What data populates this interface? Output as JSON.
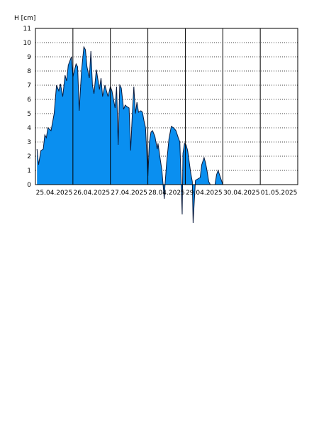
{
  "chart_data": {
    "type": "area",
    "title": "",
    "ylabel": "H [cm]",
    "xlabel": "",
    "ylim": [
      0,
      11
    ],
    "y_ticks": [
      "0",
      "1",
      "2",
      "3",
      "4",
      "5",
      "6",
      "7",
      "8",
      "9",
      "10",
      "11"
    ],
    "x_axis": {
      "type": "date",
      "start": "2025-04-25T00:00",
      "end": "2025-05-02T00:00",
      "tick_labels": [
        "25.04.2025",
        "26.04.2025",
        "27.04.2025",
        "28.04.2025",
        "29.04.2025",
        "30.04.2025",
        "01.05.2025"
      ],
      "gridlines_at": [
        "26.04.2025",
        "27.04.2025",
        "28.04.2025",
        "29.04.2025",
        "30.04.2025",
        "01.05.2025"
      ]
    },
    "grid": {
      "horizontal": "dotted",
      "vertical": "solid"
    },
    "colors": {
      "fill": "#0a8ff0",
      "line": "#0a1a3c",
      "grid": "#000000"
    },
    "series": [
      {
        "points": [
          [
            "25.04.2025 01:00",
            2.5
          ],
          [
            "25.04.2025 02:00",
            1.4
          ],
          [
            "25.04.2025 03:30",
            2.4
          ],
          [
            "25.04.2025 05:00",
            2.5
          ],
          [
            "25.04.2025 06:00",
            3.5
          ],
          [
            "25.04.2025 07:00",
            3.3
          ],
          [
            "25.04.2025 08:00",
            4.0
          ],
          [
            "25.04.2025 10:00",
            3.8
          ],
          [
            "25.04.2025 12:00",
            5.0
          ],
          [
            "25.04.2025 13:30",
            7.0
          ],
          [
            "25.04.2025 15:00",
            6.6
          ],
          [
            "25.04.2025 16:00",
            7.1
          ],
          [
            "25.04.2025 17:30",
            6.2
          ],
          [
            "25.04.2025 19:00",
            7.7
          ],
          [
            "25.04.2025 20:00",
            7.3
          ],
          [
            "25.04.2025 21:00",
            8.4
          ],
          [
            "25.04.2025 23:00",
            9.0
          ],
          [
            "26.04.2025 00:00",
            7.6
          ],
          [
            "26.04.2025 02:00",
            8.5
          ],
          [
            "26.04.2025 03:00",
            8.3
          ],
          [
            "26.04.2025 04:00",
            5.2
          ],
          [
            "26.04.2025 05:30",
            8.0
          ],
          [
            "26.04.2025 07:00",
            9.7
          ],
          [
            "26.04.2025 08:00",
            9.5
          ],
          [
            "26.04.2025 09:00",
            8.3
          ],
          [
            "26.04.2025 10:30",
            7.5
          ],
          [
            "26.04.2025 11:30",
            9.4
          ],
          [
            "26.04.2025 12:30",
            7.0
          ],
          [
            "26.04.2025 13:30",
            6.4
          ],
          [
            "26.04.2025 15:00",
            8.1
          ],
          [
            "26.04.2025 16:00",
            7.4
          ],
          [
            "26.04.2025 17:00",
            6.7
          ],
          [
            "26.04.2025 18:00",
            7.5
          ],
          [
            "26.04.2025 19:00",
            6.2
          ],
          [
            "26.04.2025 20:30",
            7.0
          ],
          [
            "26.04.2025 21:30",
            6.6
          ],
          [
            "26.04.2025 22:30",
            6.2
          ],
          [
            "27.04.2025 00:00",
            6.9
          ],
          [
            "27.04.2025 01:00",
            6.6
          ],
          [
            "27.04.2025 02:00",
            6.0
          ],
          [
            "27.04.2025 03:00",
            5.4
          ],
          [
            "27.04.2025 04:00",
            6.9
          ],
          [
            "27.04.2025 05:00",
            2.8
          ],
          [
            "27.04.2025 06:00",
            7.0
          ],
          [
            "27.04.2025 07:00",
            6.8
          ],
          [
            "27.04.2025 08:30",
            5.3
          ],
          [
            "27.04.2025 09:30",
            5.6
          ],
          [
            "27.04.2025 10:30",
            5.5
          ],
          [
            "27.04.2025 12:00",
            5.4
          ],
          [
            "27.04.2025 13:00",
            2.4
          ],
          [
            "27.04.2025 14:00",
            4.8
          ],
          [
            "27.04.2025 15:00",
            6.9
          ],
          [
            "27.04.2025 16:00",
            5.0
          ],
          [
            "27.04.2025 17:00",
            5.8
          ],
          [
            "27.04.2025 18:00",
            5.1
          ],
          [
            "27.04.2025 19:30",
            5.2
          ],
          [
            "27.04.2025 20:30",
            5.1
          ],
          [
            "27.04.2025 21:30",
            4.5
          ],
          [
            "27.04.2025 22:30",
            4.0
          ],
          [
            "28.04.2025 00:00",
            0.6
          ],
          [
            "28.04.2025 01:00",
            3.0
          ],
          [
            "28.04.2025 02:00",
            3.7
          ],
          [
            "28.04.2025 03:00",
            3.8
          ],
          [
            "28.04.2025 04:30",
            3.4
          ],
          [
            "28.04.2025 06:00",
            2.5
          ],
          [
            "28.04.2025 06:30",
            2.9
          ],
          [
            "28.04.2025 07:30",
            2.1
          ],
          [
            "28.04.2025 09:00",
            1.0
          ],
          [
            "28.04.2025 10:30",
            -1.0
          ],
          [
            "28.04.2025 11:00",
            0.0
          ],
          [
            "28.04.2025 12:00",
            1.5
          ],
          [
            "28.04.2025 13:30",
            3.2
          ],
          [
            "28.04.2025 15:00",
            4.1
          ],
          [
            "28.04.2025 16:30",
            4.0
          ],
          [
            "28.04.2025 18:00",
            3.8
          ],
          [
            "28.04.2025 19:30",
            3.3
          ],
          [
            "28.04.2025 20:30",
            3.0
          ],
          [
            "28.04.2025 22:00",
            -2.1
          ],
          [
            "28.04.2025 22:30",
            2.2
          ],
          [
            "28.04.2025 23:30",
            2.9
          ],
          [
            "29.04.2025 00:30",
            2.8
          ],
          [
            "29.04.2025 01:30",
            2.4
          ],
          [
            "29.04.2025 02:30",
            1.6
          ],
          [
            "29.04.2025 03:30",
            0.8
          ],
          [
            "29.04.2025 04:30",
            0.2
          ],
          [
            "29.04.2025 05:00",
            -2.7
          ],
          [
            "29.04.2025 06:30",
            0.3
          ],
          [
            "29.04.2025 08:00",
            0.4
          ],
          [
            "29.04.2025 09:30",
            0.5
          ],
          [
            "29.04.2025 10:30",
            1.4
          ],
          [
            "29.04.2025 12:00",
            1.9
          ],
          [
            "29.04.2025 13:00",
            1.5
          ],
          [
            "29.04.2025 14:00",
            0.9
          ],
          [
            "29.04.2025 15:00",
            0.2
          ],
          [
            "29.04.2025 16:00",
            0.0
          ],
          [
            "29.04.2025 17:30",
            0.0
          ],
          [
            "29.04.2025 19:00",
            0.0
          ],
          [
            "29.04.2025 20:00",
            0.7
          ],
          [
            "29.04.2025 21:00",
            1.0
          ],
          [
            "29.04.2025 22:30",
            0.5
          ],
          [
            "30.04.2025 00:00",
            0.0
          ]
        ]
      }
    ]
  }
}
